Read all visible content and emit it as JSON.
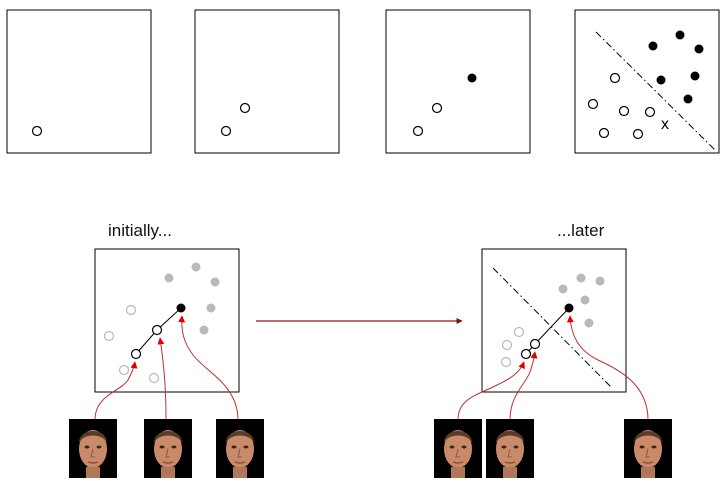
{
  "top_row": {
    "panels": [
      {
        "open_points": 1,
        "filled_points": 0
      },
      {
        "open_points": 2,
        "filled_points": 0
      },
      {
        "open_points": 2,
        "filled_points": 1
      },
      {
        "open_points": 6,
        "filled_points": 6,
        "query_marker": "x",
        "has_boundary": true
      }
    ]
  },
  "labels": {
    "initially": "initially...",
    "later": "...later"
  },
  "bottom": {
    "initial_panel": {
      "faces": 3
    },
    "later_panel": {
      "faces": 3,
      "has_boundary": true
    }
  },
  "colors": {
    "stroke": "#000000",
    "faded": "#b9b9b9",
    "arrow_red": "#e00000",
    "curve_red": "#c03030",
    "main_arrow": "#8b1a1a",
    "face_bg": "#000000",
    "skin": "#c98a6a"
  }
}
